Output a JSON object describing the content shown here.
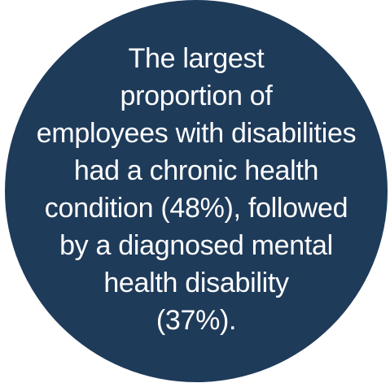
{
  "callout": {
    "background_color": "#1f3b5a",
    "text_color": "#ffffff",
    "lines": [
      "The largest",
      "proportion of",
      "employees with disabilities",
      "had a chronic health",
      "condition (48%), followed",
      "by a diagnosed mental",
      "health disability",
      "(37%)."
    ]
  }
}
